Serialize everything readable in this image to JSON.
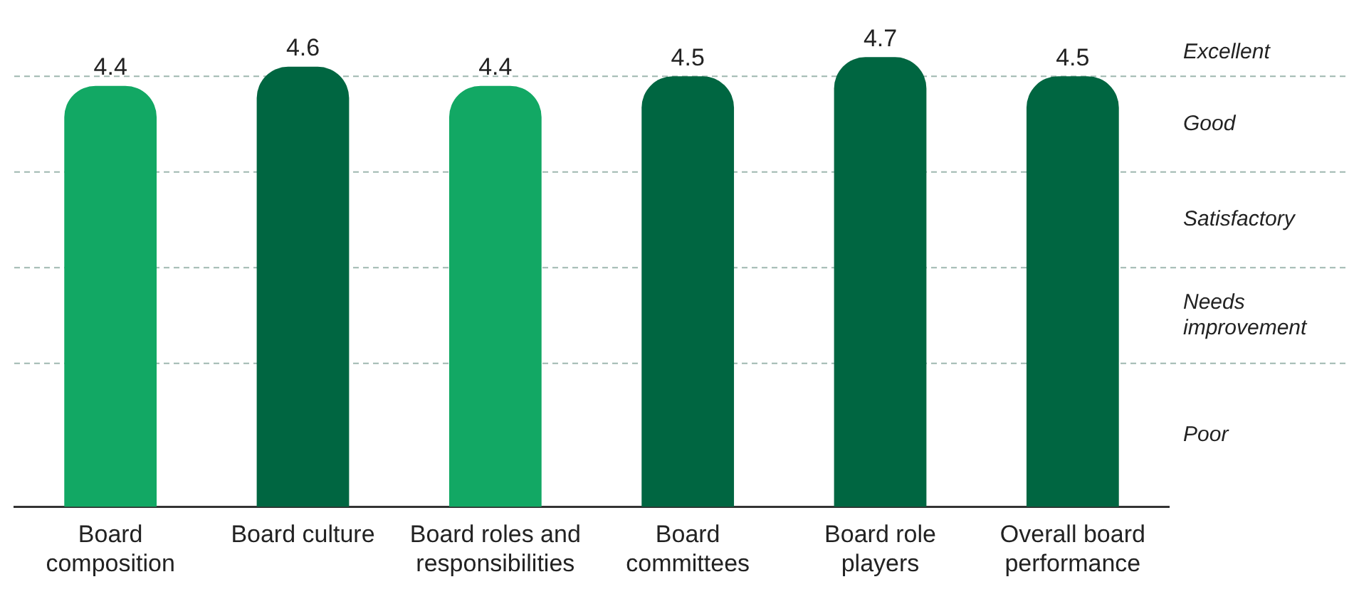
{
  "chart_data": {
    "type": "bar",
    "categories": [
      "Board composition",
      "Board culture",
      "Board roles and responsibilities",
      "Board committees",
      "Board role players",
      "Overall board performance"
    ],
    "values": [
      4.4,
      4.6,
      4.4,
      4.5,
      4.7,
      4.5
    ],
    "colors": [
      "#12a864",
      "#006641",
      "#12a864",
      "#006641",
      "#006641",
      "#006641"
    ],
    "ref_lines": [
      {
        "axis": "y",
        "value": 4.5,
        "color": "#9fb8b0",
        "line_style": "dashed"
      },
      {
        "axis": "y",
        "value": 3.5,
        "color": "#9fb8b0",
        "line_style": "dashed"
      },
      {
        "axis": "y",
        "value": 2.5,
        "color": "#9fb8b0",
        "line_style": "dashed"
      },
      {
        "axis": "y",
        "value": 1.5,
        "color": "#9fb8b0",
        "line_style": "dashed"
      }
    ],
    "annotations": [
      "Excellent",
      "Good",
      "Satisfactory",
      "Needs improvement",
      "Poor"
    ],
    "data_labels": true,
    "grid": false,
    "legend": false
  }
}
